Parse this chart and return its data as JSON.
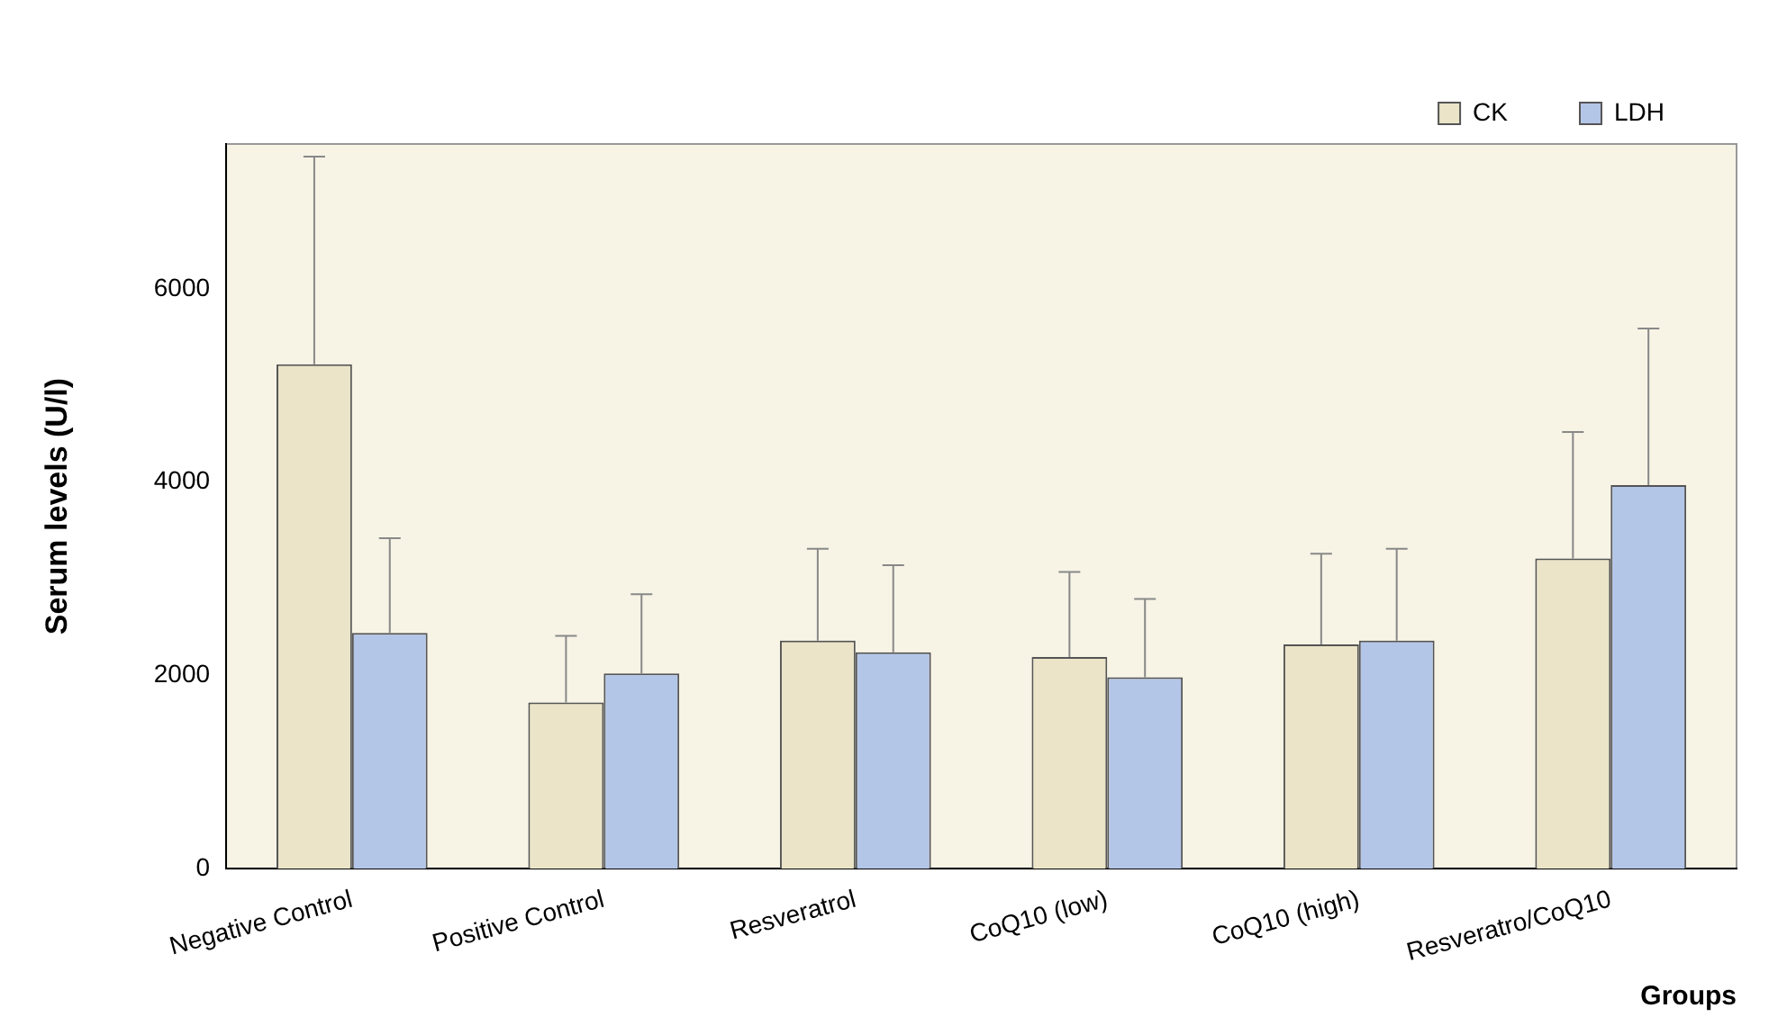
{
  "chart_data": {
    "type": "bar",
    "xlabel": "Groups",
    "ylabel": "Serum levels (U/l)",
    "categories": [
      "Negative Control",
      "Positive Control",
      "Resveratrol",
      "CoQ10 (low)",
      "CoQ10 (high)",
      "Resveratro/CoQ10"
    ],
    "series": [
      {
        "name": "CK",
        "color": "#ebe4c8",
        "values": [
          5220,
          1720,
          2360,
          2190,
          2320,
          3210
        ],
        "errors": [
          [
            5220,
            7370
          ],
          [
            1720,
            2410
          ],
          [
            2360,
            3310
          ],
          [
            2190,
            3070
          ],
          [
            2320,
            3260
          ],
          [
            3210,
            4520
          ]
        ]
      },
      {
        "name": "LDH",
        "color": "#b4c6e8",
        "values": [
          2440,
          2020,
          2240,
          1980,
          2360,
          3970
        ],
        "errors": [
          [
            2440,
            3420
          ],
          [
            2020,
            2840
          ],
          [
            2240,
            3140
          ],
          [
            1980,
            2790
          ],
          [
            2360,
            3310
          ],
          [
            3970,
            5590
          ]
        ]
      }
    ],
    "ylim": [
      0,
      7500
    ],
    "yticks": [
      0,
      2000,
      4000,
      6000
    ],
    "grid": false,
    "legend": "top right"
  }
}
